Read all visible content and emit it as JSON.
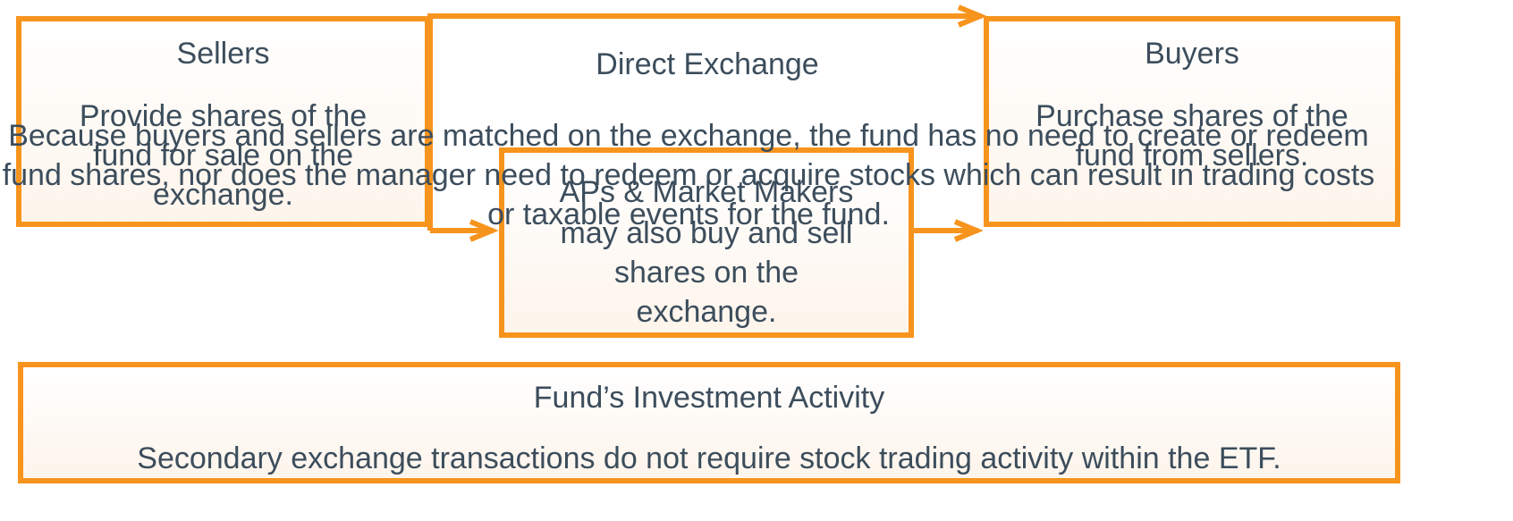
{
  "nodes": [
    {
      "title": "Sellers",
      "text": "Provide shares of the fund for sale on the exchange."
    },
    {
      "title": "Direct Exchange",
      "text": "Because buyers and sellers are matched on the exchange, the fund has no need to create or redeem fund shares, nor does the manager need to redeem or acquire stocks which can result in trading costs or taxable events for the fund."
    },
    {
      "title": "Buyers",
      "text": "Purchase shares of the fund from sellers."
    },
    {
      "title": "APs & Market Makers",
      "text": "may also buy and sell shares on the exchange."
    },
    {
      "title": "Fund’s Investment Activity",
      "text": "Secondary exchange transactions do not require stock trading activity within the ETF."
    }
  ]
}
